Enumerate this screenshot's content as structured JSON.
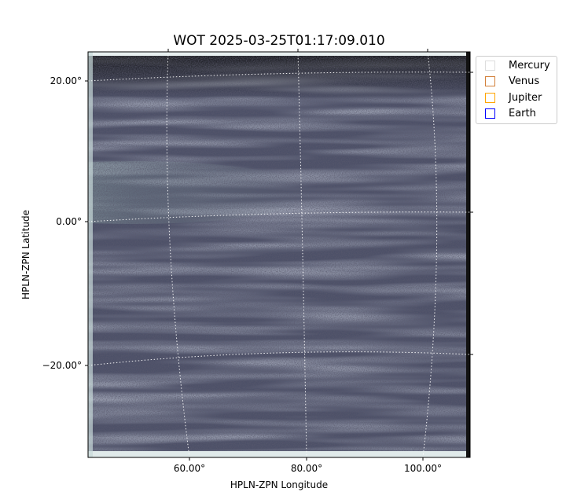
{
  "chart_data": {
    "type": "heatmap",
    "title": "WOT 2025-03-25T01:17:09.010",
    "xlabel": "HPLN-ZPN Longitude",
    "ylabel": "HPLN-ZPN Latitude",
    "x_ticks": [
      "60.00°",
      "80.00°",
      "100.00°"
    ],
    "y_ticks": [
      "20.00°",
      "0.00°",
      "−20.00°"
    ],
    "grid": true,
    "colormap": "bone",
    "legend_position": "upper-right-outside",
    "legend": [
      {
        "name": "Mercury",
        "color": "#dddddd"
      },
      {
        "name": "Venus",
        "color": "#d2803a"
      },
      {
        "name": "Jupiter",
        "color": "#ffa500"
      },
      {
        "name": "Earth",
        "color": "#0000ff"
      }
    ]
  }
}
